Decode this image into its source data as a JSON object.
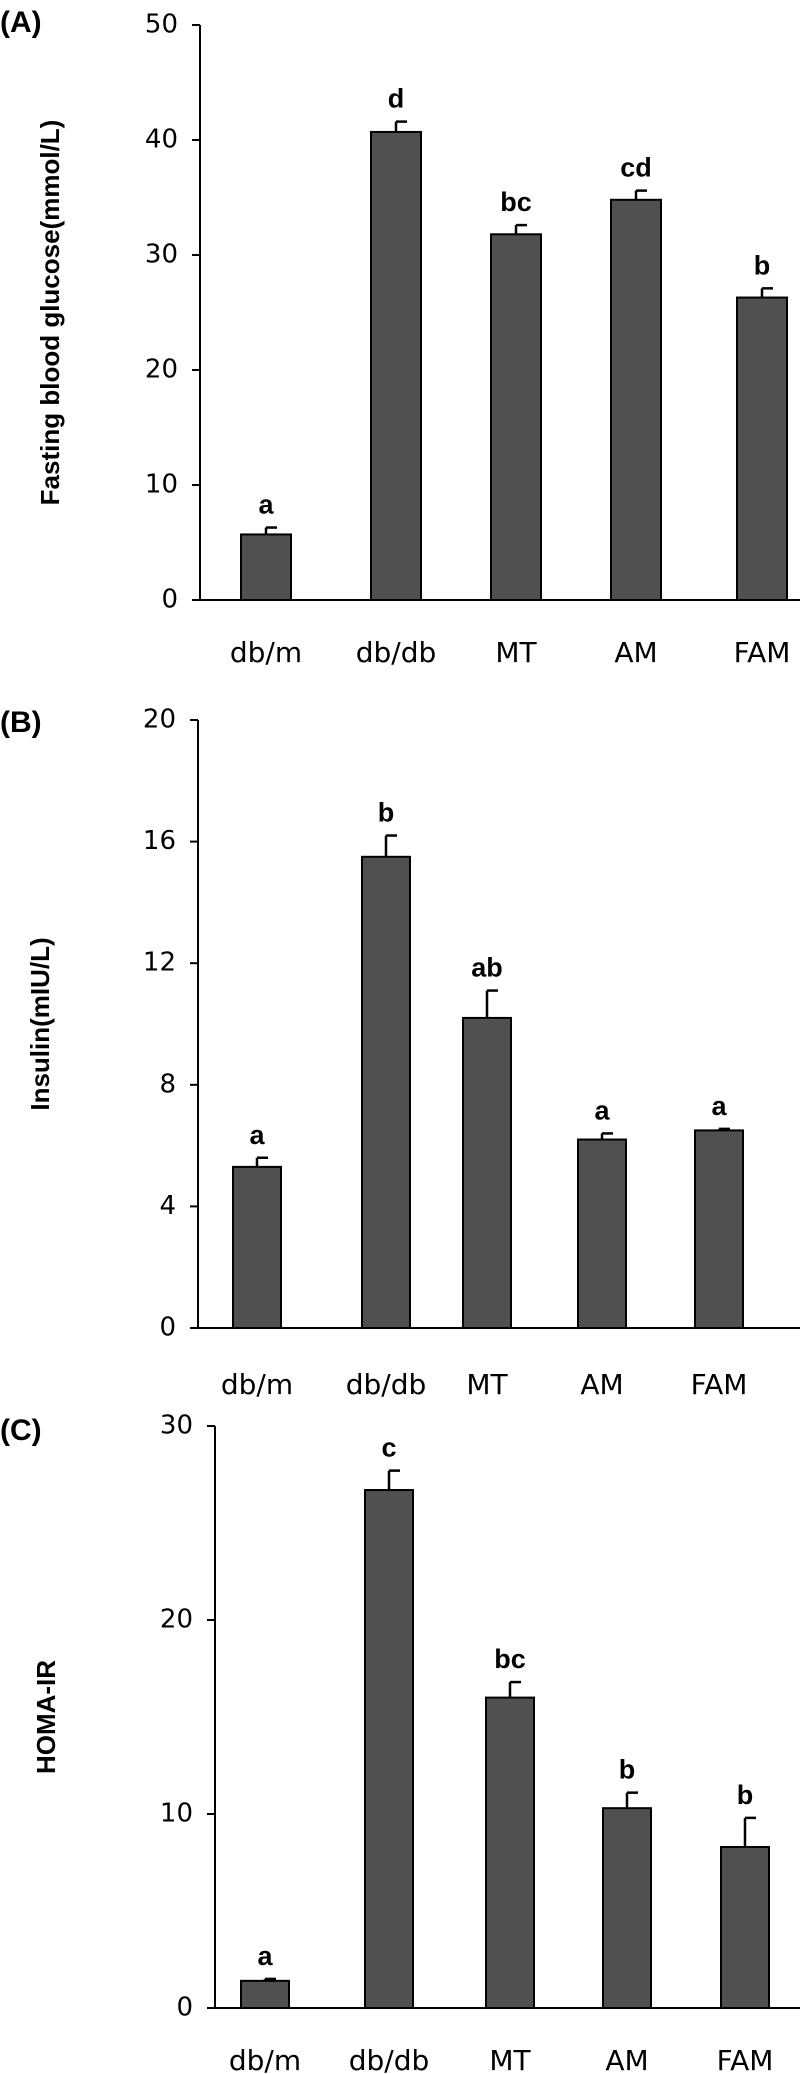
{
  "chart_data": [
    {
      "type": "bar",
      "panel_label": "(A)",
      "ylabel": "Fasting blood glucose(mmol/L)",
      "ylim": [
        0,
        50
      ],
      "yticks": [
        0,
        10,
        20,
        30,
        40,
        50
      ],
      "categories": [
        "db/m",
        "db/db",
        "MT",
        "AM",
        "FAM"
      ],
      "values": [
        5.7,
        40.7,
        31.8,
        34.8,
        26.3
      ],
      "errors": [
        0.6,
        0.9,
        0.8,
        0.8,
        0.8
      ],
      "annotations": [
        "a",
        "d",
        "bc",
        "cd",
        "b"
      ],
      "bar_color": "#505050"
    },
    {
      "type": "bar",
      "panel_label": "(B)",
      "ylabel": "Insulin(mIU/L)",
      "ylim": [
        0,
        20
      ],
      "yticks": [
        0,
        4,
        8,
        12,
        16,
        20
      ],
      "categories": [
        "db/m",
        "db/db",
        "MT",
        "AM",
        "FAM"
      ],
      "values": [
        5.3,
        15.5,
        10.2,
        6.2,
        6.5
      ],
      "errors": [
        0.3,
        0.7,
        0.9,
        0.2,
        0.05
      ],
      "annotations": [
        "a",
        "b",
        "ab",
        "a",
        "a"
      ],
      "bar_color": "#505050"
    },
    {
      "type": "bar",
      "panel_label": "(C)",
      "ylabel": "HOMA-IR",
      "ylim": [
        0,
        30
      ],
      "yticks": [
        0,
        10,
        20,
        30
      ],
      "categories": [
        "db/m",
        "db/db",
        "MT",
        "AM",
        "FAM"
      ],
      "values": [
        1.4,
        26.7,
        16.0,
        10.3,
        8.3
      ],
      "errors": [
        0.1,
        1.0,
        0.8,
        0.8,
        1.5
      ],
      "annotations": [
        "a",
        "c",
        "bc",
        "b",
        "b"
      ],
      "bar_color": "#505050"
    }
  ]
}
